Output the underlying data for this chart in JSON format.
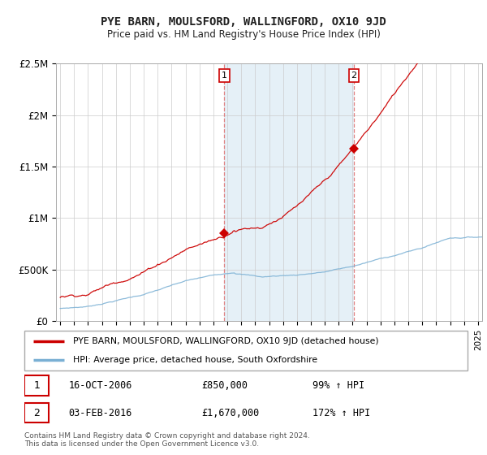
{
  "title": "PYE BARN, MOULSFORD, WALLINGFORD, OX10 9JD",
  "subtitle": "Price paid vs. HM Land Registry's House Price Index (HPI)",
  "legend_line1": "PYE BARN, MOULSFORD, WALLINGFORD, OX10 9JD (detached house)",
  "legend_line2": "HPI: Average price, detached house, South Oxfordshire",
  "footnote": "Contains HM Land Registry data © Crown copyright and database right 2024.\nThis data is licensed under the Open Government Licence v3.0.",
  "sale1_date": "16-OCT-2006",
  "sale1_price": "£850,000",
  "sale1_hpi": "99% ↑ HPI",
  "sale2_date": "03-FEB-2016",
  "sale2_price": "£1,670,000",
  "sale2_hpi": "172% ↑ HPI",
  "sale1_x": 2006.79,
  "sale1_y": 850000,
  "sale2_x": 2016.09,
  "sale2_y": 1670000,
  "ylim": [
    0,
    2500000
  ],
  "xlim": [
    1994.7,
    2025.3
  ],
  "red_color": "#cc0000",
  "blue_color": "#7ab0d4",
  "shade_color": "#daeaf5",
  "shade_alpha": 0.7,
  "grid_color": "#cccccc",
  "bg_color": "#ffffff"
}
